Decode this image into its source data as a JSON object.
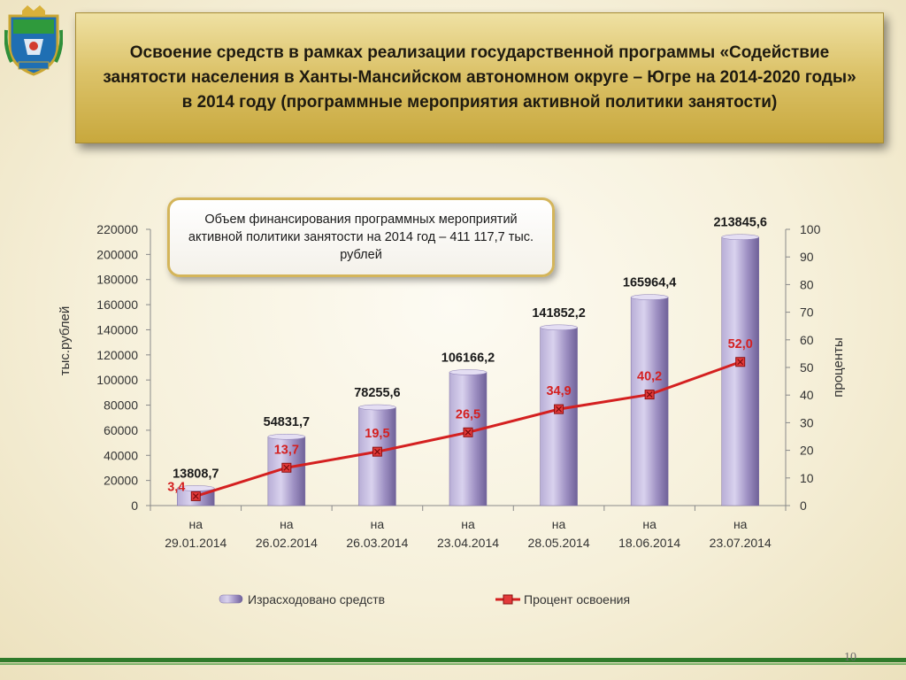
{
  "header": {
    "title": "Освоение средств в рамках реализации государственной программы «Содействие занятости населения в Ханты-Мансийском автономном округе – Югре на 2014-2020 годы» в 2014 году (программные мероприятия активной политики занятости)"
  },
  "callout": {
    "text": "Объем финансирования программных мероприятий активной политики занятости на 2014 год – 411 117,7 тыс. рублей"
  },
  "footer": {
    "page_number": "10"
  },
  "colors": {
    "bars": "#9d8fc2",
    "line": "#d42020",
    "footer": "#2f7a2a"
  },
  "icons": {
    "emblem": "coat-of-arms-icon"
  },
  "chart_data": {
    "type": "bar",
    "categories": [
      [
        "на",
        "29.01.2014"
      ],
      [
        "на",
        "26.02.2014"
      ],
      [
        "на",
        "26.03.2014"
      ],
      [
        "на",
        "23.04.2014"
      ],
      [
        "на",
        "28.05.2014"
      ],
      [
        "на",
        "18.06.2014"
      ],
      [
        "на",
        "23.07.2014"
      ]
    ],
    "series": [
      {
        "name": "Израсходовано средств",
        "type": "bar",
        "axis": "left",
        "values": [
          13808.7,
          54831.7,
          78255.6,
          106166.2,
          141852.2,
          165964.4,
          213845.6
        ],
        "labels": [
          "13808,7",
          "54831,7",
          "78255,6",
          "106166,2",
          "141852,2",
          "165964,4",
          "213845,6"
        ]
      },
      {
        "name": "Процент освоения",
        "type": "line",
        "axis": "right",
        "values": [
          3.4,
          13.7,
          19.5,
          26.5,
          34.9,
          40.2,
          52.0
        ],
        "labels": [
          "3,4",
          "13,7",
          "19,5",
          "26,5",
          "34,9",
          "40,2",
          "52,0"
        ]
      }
    ],
    "ylabel": "тыс.рублей",
    "y2label": "проценты",
    "ylim": [
      0,
      220000
    ],
    "y2lim": [
      0,
      100
    ],
    "yticks": [
      0,
      20000,
      40000,
      60000,
      80000,
      100000,
      120000,
      140000,
      160000,
      180000,
      200000,
      220000
    ],
    "y2ticks": [
      0,
      10,
      20,
      30,
      40,
      50,
      60,
      70,
      80,
      90,
      100
    ],
    "grid": false,
    "legend_position": "bottom"
  }
}
